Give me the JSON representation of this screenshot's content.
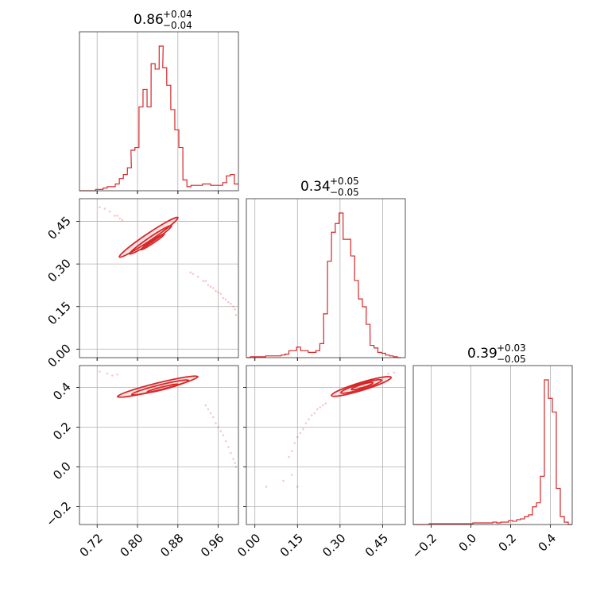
{
  "chart_data": {
    "type": "corner",
    "color": "#d62728",
    "grid": true,
    "titles": [
      {
        "value": "0.86",
        "plus": "+0.04",
        "minus": "−0.04"
      },
      {
        "value": "0.34",
        "plus": "+0.05",
        "minus": "−0.05"
      },
      {
        "value": "0.39",
        "plus": "+0.03",
        "minus": "−0.05"
      }
    ],
    "params": [
      {
        "range": [
          0.685,
          1.0
        ],
        "ticks": [
          0.72,
          0.8,
          0.88,
          0.96
        ],
        "tick_labels": [
          "0.72",
          "0.80",
          "0.88",
          "0.96"
        ]
      },
      {
        "range": [
          -0.03,
          0.53
        ],
        "ticks": [
          0.0,
          0.15,
          0.3,
          0.45
        ],
        "tick_labels": [
          "0.00",
          "0.15",
          "0.30",
          "0.45"
        ]
      },
      {
        "range": [
          -0.29,
          0.51
        ],
        "ticks": [
          -0.2,
          0.0,
          0.2,
          0.4
        ],
        "tick_labels": [
          "−0.2",
          "0.0",
          "0.2",
          "0.4"
        ]
      }
    ],
    "histograms": [
      {
        "bin_width": 0.00788,
        "bins_left": [
          0.685,
          0.693,
          0.701,
          0.709,
          0.717,
          0.724,
          0.732,
          0.74,
          0.748,
          0.756,
          0.764,
          0.772,
          0.78,
          0.787,
          0.795,
          0.803,
          0.811,
          0.819,
          0.827,
          0.835,
          0.843,
          0.85,
          0.858,
          0.866,
          0.874,
          0.882,
          0.89,
          0.898,
          0.906,
          0.913,
          0.921,
          0.929,
          0.937,
          0.945,
          0.953,
          0.961,
          0.969,
          0.976,
          0.984,
          0.992
        ],
        "counts": [
          0,
          0,
          0,
          0,
          1,
          1,
          2,
          3,
          3,
          5,
          9,
          12,
          17,
          30,
          32,
          62,
          75,
          62,
          94,
          90,
          107,
          91,
          78,
          60,
          45,
          32,
          8,
          3,
          4,
          4,
          4,
          5,
          5,
          4,
          4,
          4,
          6,
          11,
          12,
          5
        ]
      },
      {
        "bin_width": 0.0136,
        "bins_left": [
          -0.03,
          -0.016,
          -0.003,
          0.011,
          0.024,
          0.038,
          0.052,
          0.065,
          0.079,
          0.093,
          0.106,
          0.12,
          0.133,
          0.147,
          0.161,
          0.174,
          0.188,
          0.202,
          0.215,
          0.229,
          0.242,
          0.256,
          0.27,
          0.283,
          0.297,
          0.311,
          0.324,
          0.338,
          0.351,
          0.365,
          0.379,
          0.392,
          0.406,
          0.42,
          0.433,
          0.447,
          0.46,
          0.474,
          0.488,
          0.501
        ],
        "counts": [
          0,
          1,
          1,
          1,
          1,
          2,
          2,
          2,
          2,
          3,
          4,
          8,
          8,
          12,
          8,
          8,
          6,
          6,
          8,
          16,
          50,
          110,
          143,
          153,
          165,
          135,
          135,
          116,
          88,
          67,
          58,
          38,
          14,
          11,
          6,
          5,
          3,
          2,
          1,
          0
        ]
      },
      {
        "bin_width": 0.02,
        "bins_left": [
          -0.29,
          -0.27,
          -0.25,
          -0.23,
          -0.21,
          -0.19,
          -0.17,
          -0.15,
          -0.13,
          -0.11,
          -0.09,
          -0.07,
          -0.05,
          -0.03,
          -0.01,
          0.01,
          0.03,
          0.05,
          0.07,
          0.09,
          0.11,
          0.13,
          0.15,
          0.17,
          0.19,
          0.21,
          0.23,
          0.25,
          0.27,
          0.29,
          0.31,
          0.33,
          0.35,
          0.37,
          0.39,
          0.41,
          0.43,
          0.45,
          0.47,
          0.49
        ],
        "counts": [
          0,
          0,
          0,
          0,
          1,
          1,
          1,
          1,
          1,
          1,
          1,
          1,
          1,
          1,
          1,
          2,
          2,
          2,
          2,
          2,
          3,
          2,
          3,
          3,
          5,
          4,
          6,
          7,
          10,
          12,
          22,
          27,
          60,
          180,
          157,
          140,
          45,
          10,
          3,
          0
        ]
      }
    ],
    "pair_panels": [
      {
        "x_param": 0,
        "y_param": 1,
        "contour_sets": [
          {
            "center": [
              0.822,
              0.394
            ],
            "semi_axes": [
              0.07,
              0.0125
            ],
            "angle_deg": -34
          },
          {
            "center": [
              0.826,
              0.385
            ],
            "semi_axes": [
              0.05,
              0.009
            ],
            "angle_deg": -34
          },
          {
            "center": [
              0.83,
              0.378
            ],
            "semi_axes": [
              0.028,
              0.005
            ],
            "angle_deg": -34
          }
        ],
        "scatter": [
          [
            0.725,
            0.5
          ],
          [
            0.735,
            0.495
          ],
          [
            0.745,
            0.485
          ],
          [
            0.755,
            0.47
          ],
          [
            0.76,
            0.47
          ],
          [
            0.765,
            0.46
          ],
          [
            0.77,
            0.455
          ],
          [
            0.905,
            0.27
          ],
          [
            0.91,
            0.265
          ],
          [
            0.92,
            0.255
          ],
          [
            0.93,
            0.24
          ],
          [
            0.935,
            0.24
          ],
          [
            0.94,
            0.225
          ],
          [
            0.945,
            0.22
          ],
          [
            0.95,
            0.215
          ],
          [
            0.955,
            0.205
          ],
          [
            0.96,
            0.2
          ],
          [
            0.965,
            0.195
          ],
          [
            0.97,
            0.18
          ],
          [
            0.975,
            0.175
          ],
          [
            0.98,
            0.165
          ],
          [
            0.985,
            0.16
          ],
          [
            0.99,
            0.15
          ],
          [
            0.993,
            0.14
          ],
          [
            0.995,
            0.12
          ]
        ]
      },
      {
        "x_param": 0,
        "y_param": 2,
        "contour_sets": [
          {
            "center": [
              0.84,
              0.404
            ],
            "semi_axes": [
              0.082,
              0.018
            ],
            "angle_deg": -14
          },
          {
            "center": [
              0.845,
              0.4
            ],
            "semi_axes": [
              0.058,
              0.013
            ],
            "angle_deg": -14
          },
          {
            "center": [
              0.85,
              0.396
            ],
            "semi_axes": [
              0.032,
              0.007
            ],
            "angle_deg": -14
          }
        ],
        "scatter": [
          [
            0.725,
            0.48
          ],
          [
            0.74,
            0.47
          ],
          [
            0.75,
            0.46
          ],
          [
            0.76,
            0.465
          ],
          [
            0.935,
            0.31
          ],
          [
            0.94,
            0.29
          ],
          [
            0.945,
            0.27
          ],
          [
            0.95,
            0.25
          ],
          [
            0.955,
            0.22
          ],
          [
            0.96,
            0.2
          ],
          [
            0.965,
            0.18
          ],
          [
            0.97,
            0.16
          ],
          [
            0.975,
            0.13
          ],
          [
            0.98,
            0.1
          ],
          [
            0.985,
            0.07
          ],
          [
            0.99,
            0.04
          ],
          [
            0.993,
            0.02
          ],
          [
            0.995,
            0.0
          ]
        ]
      },
      {
        "x_param": 1,
        "y_param": 2,
        "contour_sets": [
          {
            "center": [
              0.375,
              0.405
            ],
            "semi_axes": [
              0.11,
              0.02
            ],
            "angle_deg": -17
          },
          {
            "center": [
              0.375,
              0.405
            ],
            "semi_axes": [
              0.075,
              0.014
            ],
            "angle_deg": -17
          },
          {
            "center": [
              0.378,
              0.407
            ],
            "semi_axes": [
              0.04,
              0.008
            ],
            "angle_deg": -17
          }
        ],
        "scatter": [
          [
            0.12,
            0.05
          ],
          [
            0.13,
            0.08
          ],
          [
            0.14,
            0.12
          ],
          [
            0.15,
            0.15
          ],
          [
            0.16,
            0.17
          ],
          [
            0.17,
            0.19
          ],
          [
            0.18,
            0.22
          ],
          [
            0.19,
            0.24
          ],
          [
            0.2,
            0.26
          ],
          [
            0.21,
            0.27
          ],
          [
            0.22,
            0.29
          ],
          [
            0.23,
            0.3
          ],
          [
            0.24,
            0.31
          ],
          [
            0.25,
            0.32
          ],
          [
            0.47,
            0.47
          ],
          [
            0.49,
            0.475
          ],
          [
            0.13,
            -0.04
          ],
          [
            0.1,
            -0.07
          ],
          [
            0.15,
            -0.1
          ],
          [
            0.04,
            -0.1
          ]
        ]
      }
    ]
  }
}
